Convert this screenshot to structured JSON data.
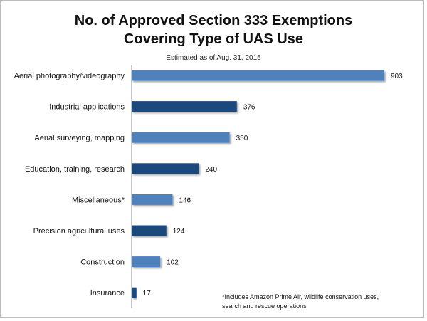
{
  "chart_data": {
    "type": "bar",
    "orientation": "horizontal",
    "title_line1": "No. of Approved Section 333 Exemptions",
    "title_line2": "Covering Type of UAS Use",
    "subtitle": "Estimated as of Aug. 31, 2015",
    "categories": [
      "Aerial photography/videography",
      "Industrial applications",
      "Aerial surveying, mapping",
      "Education, training, research",
      "Miscellaneous*",
      "Precision agricultural uses",
      "Construction",
      "Insurance"
    ],
    "values": [
      903,
      376,
      350,
      240,
      146,
      124,
      102,
      17
    ],
    "bar_colors": [
      "#4f81bd",
      "#1f497d",
      "#4f81bd",
      "#1f497d",
      "#4f81bd",
      "#1f497d",
      "#4f81bd",
      "#1f497d"
    ],
    "xlim": [
      0,
      1000
    ],
    "grid": false,
    "legend": "none"
  },
  "footnote": {
    "line1": "*Includes Amazon Prime Air, wildlife conservation uses,",
    "line2": "search and rescue operations"
  }
}
